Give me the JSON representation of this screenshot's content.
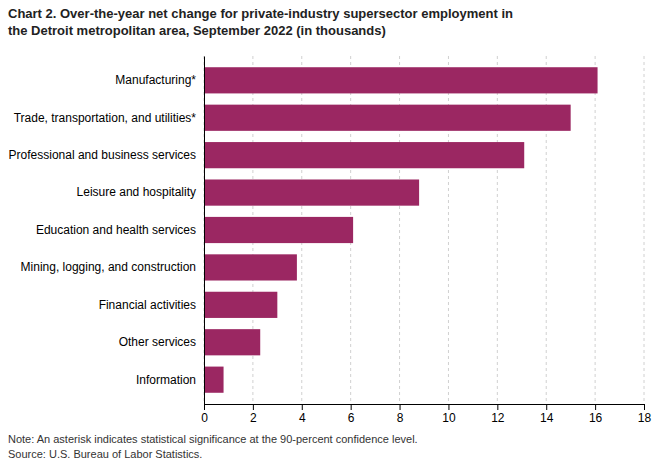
{
  "chart_data": {
    "type": "bar",
    "orientation": "horizontal",
    "title": "Chart 2. Over-the-year net change for private-industry supersector employment in\nthe Detroit metropolitan area, September 2022 (in thousands)",
    "categories": [
      "Information",
      "Other services",
      "Financial activities",
      "Mining, logging, and construction",
      "Education and health services",
      "Leisure and hospitality",
      "Professional and business services",
      "Trade, transportation, and utilities*",
      "Manufacturing*"
    ],
    "values": [
      0.8,
      2.3,
      3.0,
      3.8,
      6.1,
      8.8,
      13.1,
      15.0,
      16.1
    ],
    "color": "#9b2762",
    "xlim": [
      0,
      18
    ],
    "xticks": [
      0,
      2,
      4,
      6,
      8,
      10,
      12,
      14,
      16,
      18
    ],
    "grid": true,
    "annotations": [
      "Note: An asterisk indicates statistical significance at the 90-percent confidence level.",
      "Source: U.S. Bureau of Labor Statistics."
    ]
  }
}
